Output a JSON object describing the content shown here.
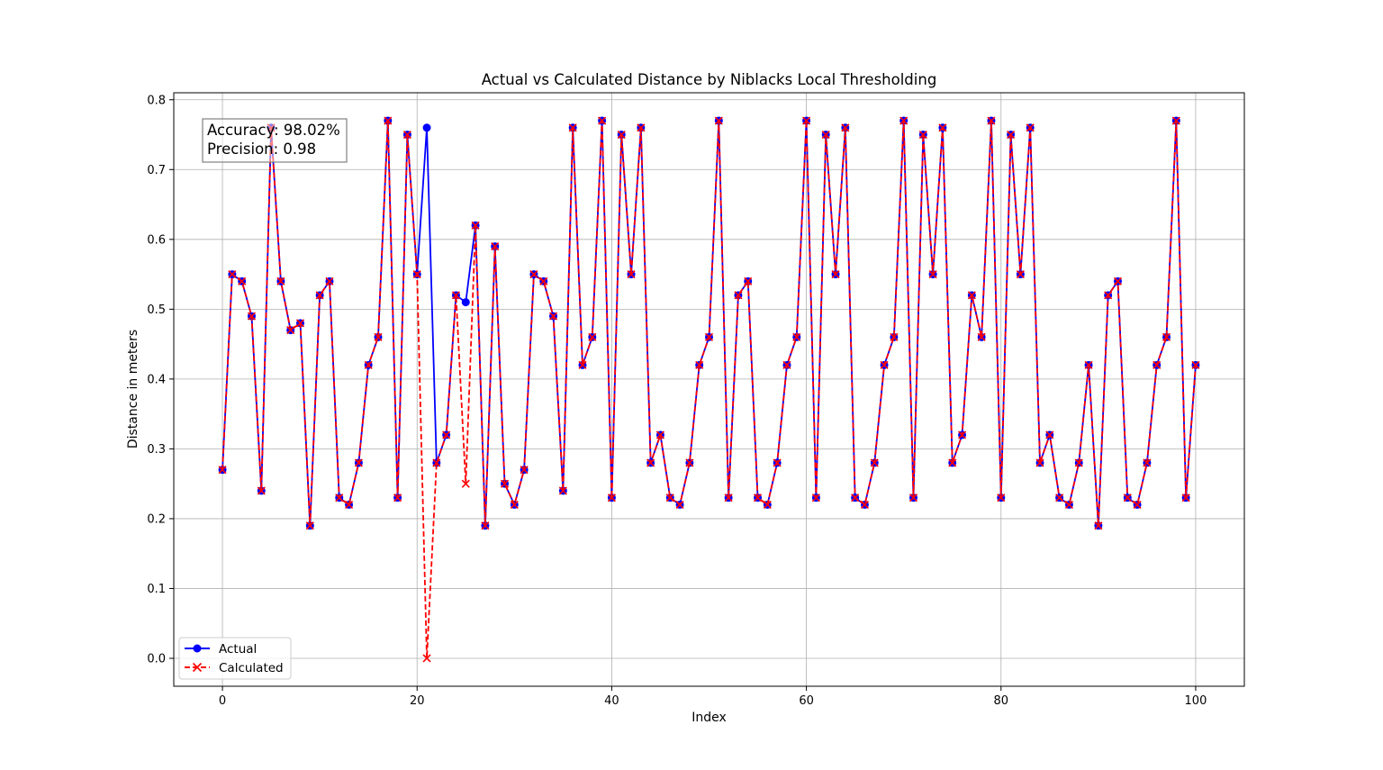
{
  "chart_data": {
    "type": "line",
    "title": "Actual vs Calculated Distance by Niblacks Local Thresholding",
    "xlabel": "Index",
    "ylabel": "Distance in meters",
    "xlim": [
      -5,
      105
    ],
    "ylim": [
      -0.04,
      0.81
    ],
    "xticks": [
      0,
      20,
      40,
      60,
      80,
      100
    ],
    "yticks": [
      0.0,
      0.1,
      0.2,
      0.3,
      0.4,
      0.5,
      0.6,
      0.7,
      0.8
    ],
    "ytick_labels": [
      "0.0",
      "0.1",
      "0.2",
      "0.3",
      "0.4",
      "0.5",
      "0.6",
      "0.7",
      "0.8"
    ],
    "grid": true,
    "legend_position": "lower-left",
    "x": [
      0,
      1,
      2,
      3,
      4,
      5,
      6,
      7,
      8,
      9,
      10,
      11,
      12,
      13,
      14,
      15,
      16,
      17,
      18,
      19,
      20,
      21,
      22,
      23,
      24,
      25,
      26,
      27,
      28,
      29,
      30,
      31,
      32,
      33,
      34,
      35,
      36,
      37,
      38,
      39,
      40,
      41,
      42,
      43,
      44,
      45,
      46,
      47,
      48,
      49,
      50,
      51,
      52,
      53,
      54,
      55,
      56,
      57,
      58,
      59,
      60,
      61,
      62,
      63,
      64,
      65,
      66,
      67,
      68,
      69,
      70,
      71,
      72,
      73,
      74,
      75,
      76,
      77,
      78,
      79,
      80,
      81,
      82,
      83,
      84,
      85,
      86,
      87,
      88,
      89,
      90,
      91,
      92,
      93,
      94,
      95,
      96,
      97,
      98,
      99,
      100
    ],
    "series": [
      {
        "name": "Actual",
        "color": "#0000ff",
        "style": "solid",
        "marker": "circle",
        "values": [
          0.27,
          0.55,
          0.54,
          0.49,
          0.24,
          0.76,
          0.54,
          0.47,
          0.48,
          0.19,
          0.52,
          0.54,
          0.23,
          0.22,
          0.28,
          0.42,
          0.46,
          0.77,
          0.23,
          0.75,
          0.55,
          0.76,
          0.28,
          0.32,
          0.52,
          0.51,
          0.62,
          0.19,
          0.59,
          0.25,
          0.22,
          0.27,
          0.55,
          0.54,
          0.49,
          0.24,
          0.76,
          0.42,
          0.46,
          0.77,
          0.23,
          0.75,
          0.55,
          0.76,
          0.28,
          0.32,
          0.23,
          0.22,
          0.28,
          0.42,
          0.46,
          0.77,
          0.23,
          0.52,
          0.54,
          0.23,
          0.22,
          0.28,
          0.42,
          0.46,
          0.77,
          0.23,
          0.75,
          0.55,
          0.76,
          0.23,
          0.22,
          0.28,
          0.42,
          0.46,
          0.77,
          0.23,
          0.75,
          0.55,
          0.76,
          0.28,
          0.32,
          0.52,
          0.46,
          0.77,
          0.23,
          0.75,
          0.55,
          0.76,
          0.28,
          0.32,
          0.23,
          0.22,
          0.28,
          0.42,
          0.19,
          0.52,
          0.54,
          0.23,
          0.22,
          0.28,
          0.42,
          0.46,
          0.77,
          0.23,
          0.42
        ]
      },
      {
        "name": "Calculated",
        "color": "#ff0000",
        "style": "dashed",
        "marker": "x",
        "values": [
          0.27,
          0.55,
          0.54,
          0.49,
          0.24,
          0.76,
          0.54,
          0.47,
          0.48,
          0.19,
          0.52,
          0.54,
          0.23,
          0.22,
          0.28,
          0.42,
          0.46,
          0.77,
          0.23,
          0.75,
          0.55,
          0.0,
          0.28,
          0.32,
          0.52,
          0.25,
          0.62,
          0.19,
          0.59,
          0.25,
          0.22,
          0.27,
          0.55,
          0.54,
          0.49,
          0.24,
          0.76,
          0.42,
          0.46,
          0.77,
          0.23,
          0.75,
          0.55,
          0.76,
          0.28,
          0.32,
          0.23,
          0.22,
          0.28,
          0.42,
          0.46,
          0.77,
          0.23,
          0.52,
          0.54,
          0.23,
          0.22,
          0.28,
          0.42,
          0.46,
          0.77,
          0.23,
          0.75,
          0.55,
          0.76,
          0.23,
          0.22,
          0.28,
          0.42,
          0.46,
          0.77,
          0.23,
          0.75,
          0.55,
          0.76,
          0.28,
          0.32,
          0.52,
          0.46,
          0.77,
          0.23,
          0.75,
          0.55,
          0.76,
          0.28,
          0.32,
          0.23,
          0.22,
          0.28,
          0.42,
          0.19,
          0.52,
          0.54,
          0.23,
          0.22,
          0.28,
          0.42,
          0.46,
          0.77,
          0.23,
          0.42
        ]
      }
    ],
    "annotation": {
      "lines": [
        "Accuracy: 98.02%",
        "Precision: 0.98"
      ]
    }
  }
}
